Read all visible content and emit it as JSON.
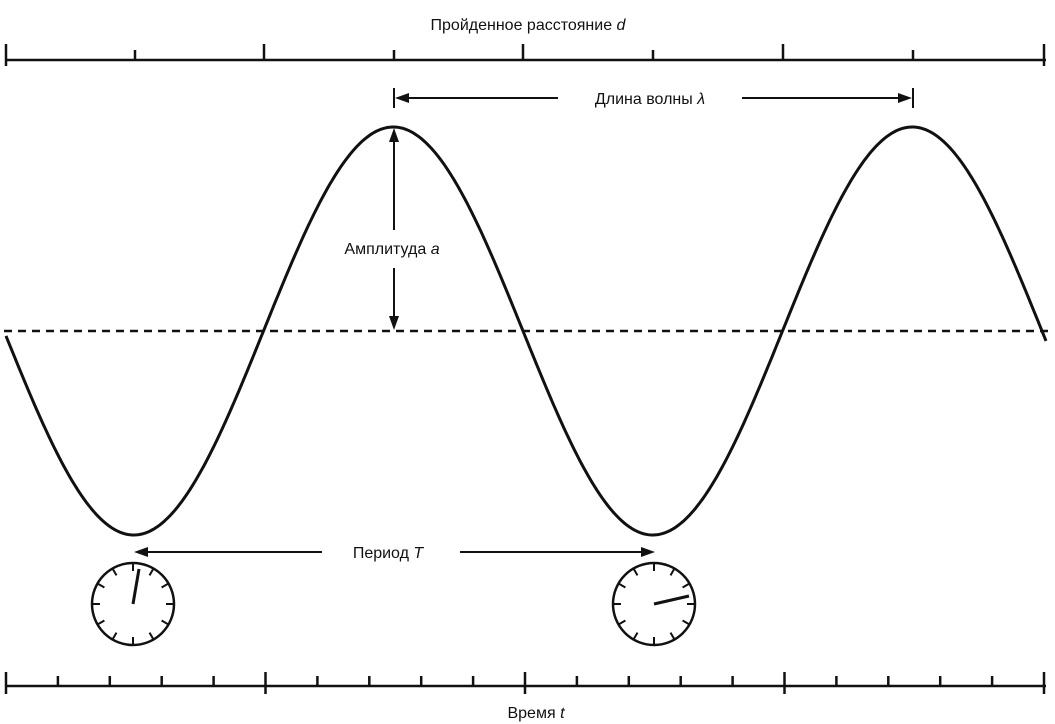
{
  "labels": {
    "distance": "Пройденное расстояние",
    "distance_symbol": "d",
    "wavelength": "Длина волны",
    "wavelength_symbol": "λ",
    "amplitude": "Амплитуда",
    "amplitude_symbol": "a",
    "period": "Период",
    "period_symbol": "T",
    "time": "Время",
    "time_symbol": "t"
  },
  "colors": {
    "ink": "#111111",
    "background": "#ffffff"
  },
  "icons": {
    "clock_left": "clock-icon",
    "clock_right": "clock-icon"
  }
}
